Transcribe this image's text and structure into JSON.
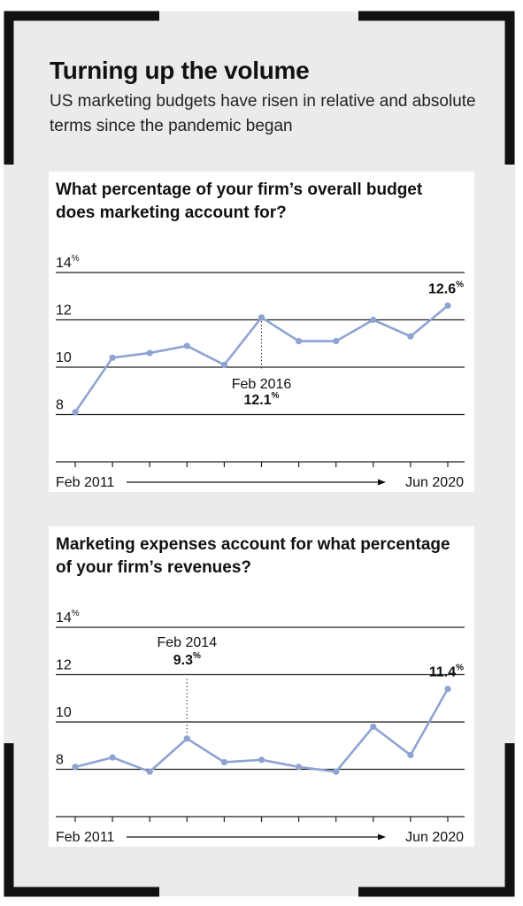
{
  "header": {
    "title": "Turning up the volume",
    "subtitle": "US marketing budgets have risen in relative and absolute terms since the pandemic began"
  },
  "colors": {
    "background": "#eaebed",
    "frame": "#111111",
    "line": "#8fa3d2",
    "grid": "#222222"
  },
  "chart_data": [
    {
      "type": "line",
      "title": "What percentage of your firm’s overall budget does marketing account for?",
      "x_start_label": "Feb 2011",
      "x_end_label": "Jun 2020",
      "ylim": [
        6,
        14
      ],
      "y_ticks": [
        {
          "value": 8,
          "label": "8"
        },
        {
          "value": 10,
          "label": "10"
        },
        {
          "value": 12,
          "label": "12"
        },
        {
          "value": 14,
          "label": "14%"
        }
      ],
      "values": [
        8.1,
        10.4,
        10.6,
        10.9,
        10.1,
        12.1,
        11.1,
        11.1,
        12.0,
        11.3,
        12.6
      ],
      "annotations": [
        {
          "index": 5,
          "label": "Feb 2016",
          "value_label": "12.1%",
          "placement": "below"
        },
        {
          "index": 10,
          "label": "",
          "value_label": "12.6%",
          "placement": "above"
        }
      ],
      "grid": true
    },
    {
      "type": "line",
      "title": "Marketing expenses account for what percentage of your firm’s revenues?",
      "x_start_label": "Feb 2011",
      "x_end_label": "Jun 2020",
      "ylim": [
        6,
        14
      ],
      "y_ticks": [
        {
          "value": 8,
          "label": "8"
        },
        {
          "value": 10,
          "label": "10"
        },
        {
          "value": 12,
          "label": "12"
        },
        {
          "value": 14,
          "label": "14%"
        }
      ],
      "values": [
        8.1,
        8.5,
        7.9,
        9.3,
        8.3,
        8.4,
        8.1,
        7.9,
        9.8,
        8.6,
        11.4
      ],
      "annotations": [
        {
          "index": 3,
          "label": "Feb 2014",
          "value_label": "9.3%",
          "placement": "above"
        },
        {
          "index": 10,
          "label": "",
          "value_label": "11.4%",
          "placement": "above"
        }
      ],
      "grid": true
    }
  ]
}
